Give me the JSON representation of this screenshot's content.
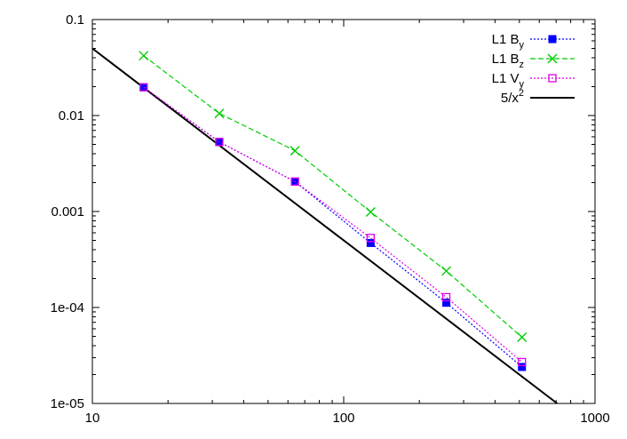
{
  "chart_data": {
    "type": "line",
    "title": "",
    "xlabel": "",
    "ylabel": "",
    "xscale": "log",
    "yscale": "log",
    "xlim": [
      10,
      1000
    ],
    "ylim": [
      1e-05,
      0.1
    ],
    "grid": false,
    "legend_position": "top-right",
    "x_ticks": [
      {
        "value": 10,
        "label": "10"
      },
      {
        "value": 100,
        "label": "100"
      },
      {
        "value": 1000,
        "label": "1000"
      }
    ],
    "y_ticks": [
      {
        "value": 0.1,
        "label": "0.1"
      },
      {
        "value": 0.01,
        "label": "0.01"
      },
      {
        "value": 0.001,
        "label": "0.001"
      },
      {
        "value": 0.0001,
        "label": "1e-04"
      },
      {
        "value": 1e-05,
        "label": "1e-05"
      }
    ],
    "series": [
      {
        "name": "L1 B",
        "name_sub": "y",
        "color": "#0000ff",
        "line_style": "dotted",
        "marker": "filled-square",
        "x": [
          16,
          32,
          64,
          128,
          256,
          512
        ],
        "y": [
          0.0197,
          0.0053,
          0.00205,
          0.00047,
          0.000112,
          2.4e-05
        ]
      },
      {
        "name": "L1 B",
        "name_sub": "z",
        "color": "#00cc00",
        "line_style": "dashed",
        "marker": "x",
        "x": [
          16,
          32,
          64,
          128,
          256,
          512
        ],
        "y": [
          0.042,
          0.0105,
          0.0043,
          0.00099,
          0.00024,
          4.9e-05
        ]
      },
      {
        "name": "L1 V",
        "name_sub": "y",
        "color": "#e000e0",
        "line_style": "dotted",
        "marker": "open-square",
        "x": [
          16,
          32,
          64,
          128,
          256,
          512
        ],
        "y": [
          0.0197,
          0.0053,
          0.00205,
          0.00053,
          0.000128,
          2.7e-05
        ]
      },
      {
        "name": "5/x",
        "name_sup": "2",
        "color": "#000000",
        "line_style": "solid",
        "marker": "none",
        "function": "5/x^2",
        "x": [
          10,
          707
        ],
        "y": [
          0.05,
          1e-05
        ]
      }
    ]
  }
}
